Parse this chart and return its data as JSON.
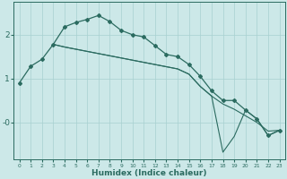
{
  "xlabel": "Humidex (Indice chaleur)",
  "bg_color": "#cce8e8",
  "line_color": "#2b6b60",
  "grid_color": "#a8d0d0",
  "ylim": [
    -0.85,
    2.75
  ],
  "xlim": [
    -0.5,
    23.5
  ],
  "line1_x": [
    0,
    1,
    2,
    3,
    4,
    5,
    6,
    7,
    8,
    9,
    10,
    11,
    12,
    13,
    14,
    15,
    16,
    17,
    18,
    19,
    20,
    21,
    22,
    23
  ],
  "line1_y": [
    0.9,
    1.28,
    1.44,
    1.78,
    2.18,
    2.28,
    2.35,
    2.44,
    2.3,
    2.1,
    2.0,
    1.95,
    1.75,
    1.55,
    1.5,
    1.32,
    1.05,
    0.72,
    0.5,
    0.5,
    0.28,
    0.08,
    -0.3,
    -0.18
  ],
  "line2_x": [
    3,
    4,
    5,
    6,
    7,
    8,
    9,
    10,
    11,
    12,
    13,
    14,
    15,
    16,
    17,
    18,
    19,
    20,
    21,
    22,
    23
  ],
  "line2_y": [
    1.78,
    1.72,
    1.67,
    1.62,
    1.57,
    1.52,
    1.47,
    1.42,
    1.37,
    1.32,
    1.27,
    1.22,
    1.1,
    0.82,
    0.6,
    0.42,
    0.3,
    0.15,
    0.0,
    -0.2,
    -0.18
  ],
  "line3_x": [
    3,
    4,
    5,
    6,
    7,
    8,
    9,
    10,
    11,
    12,
    13,
    14,
    15,
    16,
    17,
    18,
    19,
    20,
    21,
    22,
    23
  ],
  "line3_y": [
    1.78,
    1.72,
    1.67,
    1.62,
    1.57,
    1.52,
    1.47,
    1.42,
    1.37,
    1.32,
    1.27,
    1.22,
    1.1,
    0.82,
    0.6,
    -0.68,
    -0.32,
    0.28,
    0.08,
    -0.3,
    -0.18
  ]
}
